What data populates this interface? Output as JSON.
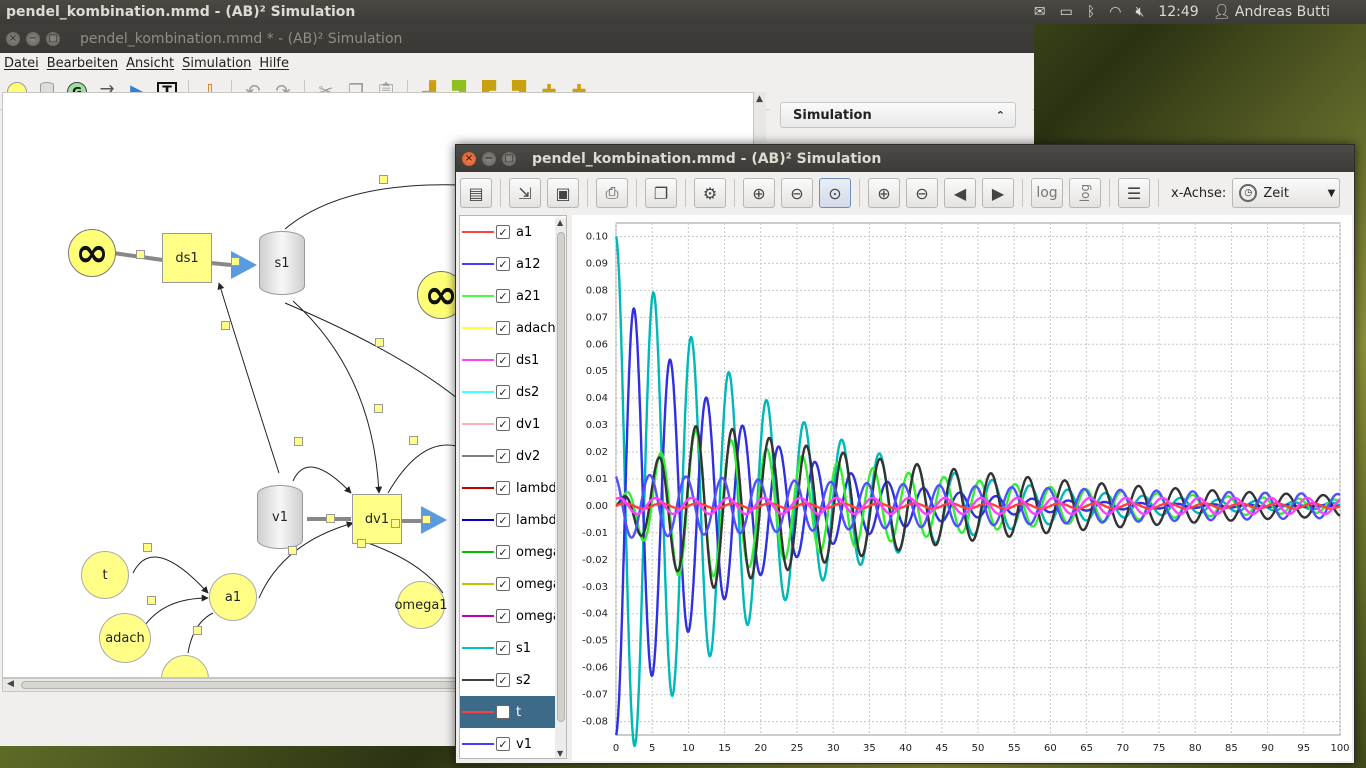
{
  "top_panel": {
    "title": "pendel_kombination.mmd - (AB)² Simulation",
    "time": "12:49",
    "user": "Andreas Butti"
  },
  "main_window": {
    "title": "pendel_kombination.mmd * - (AB)² Simulation",
    "menu": [
      "Datei",
      "Bearbeiten",
      "Ansicht",
      "Simulation",
      "Hilfe"
    ],
    "side_panel_header": "Simulation"
  },
  "canvas": {
    "nodes": {
      "ds1": "ds1",
      "s1": "s1",
      "v1": "v1",
      "dv1": "dv1",
      "t": "t",
      "a1": "a1",
      "adach": "adach",
      "omega1": "omega1"
    },
    "infinity": "∞"
  },
  "sim_window": {
    "title": "pendel_kombination.mmd - (AB)² Simulation",
    "x_axis_label": "x-Achse:",
    "x_axis_value": "Zeit",
    "log_label": "log"
  },
  "legend": [
    {
      "label": "a1",
      "color": "#ff4040",
      "checked": true
    },
    {
      "label": "a12",
      "color": "#4040ff",
      "checked": true
    },
    {
      "label": "a21",
      "color": "#40ff40",
      "checked": true
    },
    {
      "label": "adach",
      "color": "#ffff40",
      "checked": true
    },
    {
      "label": "ds1",
      "color": "#ff40ff",
      "checked": true
    },
    {
      "label": "ds2",
      "color": "#40ffff",
      "checked": true
    },
    {
      "label": "dv1",
      "color": "#ffafaf",
      "checked": true
    },
    {
      "label": "dv2",
      "color": "#808080",
      "checked": true
    },
    {
      "label": "lambd",
      "color": "#c00000",
      "checked": true
    },
    {
      "label": "lambd",
      "color": "#0000c0",
      "checked": true
    },
    {
      "label": "omega",
      "color": "#00c000",
      "checked": true
    },
    {
      "label": "omega",
      "color": "#c0c000",
      "checked": true
    },
    {
      "label": "omega",
      "color": "#c000c0",
      "checked": true
    },
    {
      "label": "s1",
      "color": "#00c0c0",
      "checked": true
    },
    {
      "label": "s2",
      "color": "#404040",
      "checked": true
    },
    {
      "label": "t",
      "color": "#ff4040",
      "checked": false,
      "selected": true
    },
    {
      "label": "v1",
      "color": "#4040ff",
      "checked": true
    }
  ],
  "chart_data": {
    "type": "line",
    "xlim": [
      0,
      100
    ],
    "ylim": [
      -0.085,
      0.105
    ],
    "x_ticks": [
      0,
      5,
      10,
      15,
      20,
      25,
      30,
      35,
      40,
      45,
      50,
      55,
      60,
      65,
      70,
      75,
      80,
      85,
      90,
      95,
      100
    ],
    "y_ticks": [
      0.1,
      0.09,
      0.08,
      0.07,
      0.06,
      0.05,
      0.04,
      0.03,
      0.02,
      0.01,
      0.0,
      -0.01,
      -0.02,
      -0.03,
      -0.04,
      -0.05,
      -0.06,
      -0.07,
      -0.08
    ],
    "grid": true,
    "series": [
      {
        "color": "#00b8b8",
        "amp": 0.1,
        "period": 5.2,
        "decay": 0.045,
        "phase": 1.5708,
        "x": [
          0,
          2.5,
          4.5,
          7,
          10,
          100
        ],
        "values": [
          0.1,
          -0.07,
          0.047,
          -0.03,
          0.02,
          0.0
        ]
      },
      {
        "color": "#3030e0",
        "amp": 0.085,
        "period": 5.0,
        "decay": 0.06,
        "phase": -1.5708,
        "x": [
          0,
          1.5,
          5,
          8,
          100
        ],
        "values": [
          0.0,
          -0.081,
          0.055,
          -0.037,
          0.0
        ]
      },
      {
        "color": "#33ee33",
        "amp": 0.038,
        "period": 4.9,
        "decay": 0.028,
        "phase": 0.0,
        "env_rise": 10,
        "x": [
          0,
          11,
          18,
          25,
          100
        ],
        "values": [
          0.0,
          0.032,
          0.036,
          0.033,
          0.0
        ]
      },
      {
        "color": "#333333",
        "amp": 0.042,
        "period": 5.1,
        "decay": 0.024,
        "phase": 0.6,
        "env_rise": 12,
        "x": [
          0,
          13,
          19,
          25,
          100
        ],
        "values": [
          0.0,
          0.035,
          0.039,
          0.037,
          0.0
        ]
      },
      {
        "color": "#5050ff",
        "amp": 0.012,
        "period": 5.0,
        "decay": 0.01,
        "phase": 2.0,
        "env_rise": 0,
        "x": [
          0,
          50,
          100
        ],
        "values": [
          0.01,
          0.01,
          0.0
        ]
      },
      {
        "color": "#ff4040",
        "amp": 0.001,
        "period": 5.0,
        "decay": 0.0,
        "phase": 0.0,
        "env_rise": 0,
        "x": [
          0,
          100
        ],
        "values": [
          0.0,
          0.0
        ]
      },
      {
        "color": "#ff40ff",
        "amp": 0.003,
        "period": 5.0,
        "decay": 0.0,
        "phase": 1.0,
        "env_rise": 0,
        "x": [
          0,
          100
        ],
        "values": [
          0.0,
          0.0
        ]
      }
    ]
  }
}
